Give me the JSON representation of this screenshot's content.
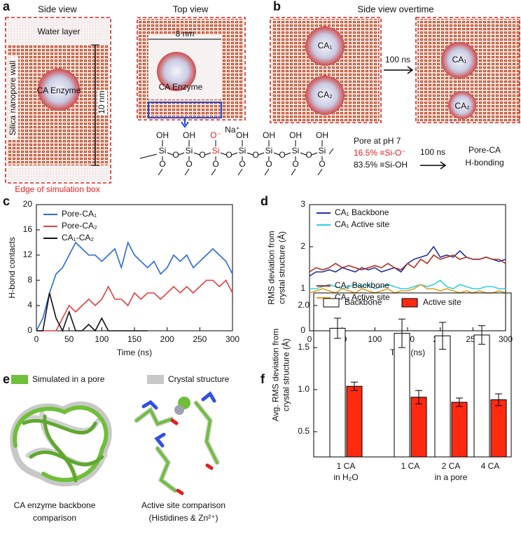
{
  "panels": {
    "a": {
      "label": "a",
      "side_view": "Side view",
      "top_view": "Top view",
      "water_layer": "Water layer",
      "wall": "Silica nanopore wall",
      "enzyme": "CA Enzyme",
      "height": "10 nm",
      "width": "8 nm",
      "edge": "Edge of simulation box"
    },
    "b": {
      "label": "b",
      "title": "Side view overtime",
      "time": "100 ns",
      "ca1": "CA₁",
      "ca2": "CA₂"
    },
    "chem": {
      "si": "Si",
      "o": "O",
      "oh": "OH",
      "o_minus": "O⁻",
      "na": "Na⁺",
      "pore": "Pore at pH 7",
      "deprotonated": "16.5% ≡Si-O⁻",
      "protonated": "83.5% ≡Si-OH",
      "time": "100 ns",
      "result": [
        "Pore-CA",
        "H-bonding"
      ]
    },
    "c": {
      "label": "c"
    },
    "d": {
      "label": "d"
    },
    "e": {
      "label": "e",
      "simulated": "Simulated in a pore",
      "crystal": "Crystal structure",
      "backbone": [
        "CA enzyme backbone",
        "comparison"
      ],
      "active": [
        "Active site comparison",
        "(Histidines & Zn²⁺)"
      ]
    },
    "f": {
      "label": "f"
    }
  },
  "chart_data": [
    {
      "type": "line",
      "xlabel": "Time (ns)",
      "ylabel": [
        "H-bond contacts"
      ],
      "legend": "upper left",
      "x": [
        0,
        10,
        20,
        30,
        40,
        50,
        60,
        70,
        80,
        90,
        100,
        110,
        120,
        130,
        140,
        150,
        160,
        170,
        180,
        190,
        200,
        210,
        220,
        230,
        240,
        250,
        260,
        270,
        280,
        290,
        300
      ],
      "xlim": [
        0,
        300
      ],
      "ylim": [
        0,
        20
      ],
      "xticks": [
        0,
        50,
        100,
        150,
        200,
        250,
        300
      ],
      "yticks": [
        0,
        4,
        8,
        12,
        16,
        20
      ],
      "series": [
        {
          "name": "Pore-CA₁",
          "color": "#2a6ad6",
          "values": [
            0,
            2,
            6,
            9,
            10,
            12,
            14,
            13,
            12,
            12,
            11,
            12,
            13,
            10,
            14,
            12,
            11,
            10,
            11,
            9,
            10,
            12,
            11,
            12,
            10,
            11,
            12,
            13,
            12,
            11,
            9
          ]
        },
        {
          "name": "Pore-CA₂",
          "color": "#e04040",
          "values": [
            0,
            0,
            0,
            0,
            2,
            4,
            3,
            4,
            5,
            4,
            5,
            7,
            5,
            5,
            4,
            6,
            5,
            6,
            6,
            5,
            6,
            7,
            6,
            7,
            6,
            7,
            8,
            8,
            7,
            8,
            6
          ]
        },
        {
          "name": "CA₁-CA₂",
          "color": "#111111",
          "values": [
            0,
            0,
            6,
            2,
            0,
            3,
            0,
            0,
            1,
            0,
            2,
            0,
            0,
            0,
            0,
            0,
            0,
            0,
            null,
            null,
            null,
            null,
            null,
            null,
            null,
            null,
            null,
            null,
            null,
            null,
            null
          ]
        }
      ]
    },
    {
      "type": "line",
      "xlabel": "Time (ns)",
      "ylabel": [
        "RMS deviation from",
        "crystal structure (Å)"
      ],
      "legend": "upper left",
      "x": [
        0,
        10,
        20,
        30,
        40,
        50,
        60,
        70,
        80,
        90,
        100,
        110,
        120,
        130,
        140,
        150,
        160,
        170,
        180,
        190,
        200,
        210,
        220,
        230,
        240,
        250,
        260,
        270,
        280,
        290,
        300
      ],
      "xlim": [
        0,
        300
      ],
      "ylim": [
        0,
        3
      ],
      "xticks": [
        0,
        50,
        100,
        150,
        200,
        250,
        300
      ],
      "yticks": [
        0,
        1,
        2,
        3
      ],
      "series": [
        {
          "name": "CA₁ Backbone",
          "color": "#2030a0",
          "values": [
            1.3,
            1.4,
            1.4,
            1.45,
            1.4,
            1.5,
            1.45,
            1.4,
            1.5,
            1.45,
            1.5,
            1.4,
            1.45,
            1.5,
            1.4,
            1.6,
            1.7,
            1.75,
            1.8,
            2.0,
            1.75,
            1.8,
            1.75,
            1.9,
            1.75,
            1.7,
            1.7,
            1.75,
            1.7,
            1.65,
            1.7
          ]
        },
        {
          "name": "CA₁ Active site",
          "color": "#30d0e0",
          "values": [
            1.0,
            1.0,
            1.05,
            1.1,
            1.05,
            1.0,
            1.05,
            1.1,
            1.05,
            1.1,
            1.0,
            1.05,
            1.1,
            1.05,
            1.0,
            1.0,
            1.05,
            1.1,
            1.05,
            1.1,
            1.2,
            1.05,
            1.0,
            1.1,
            1.05,
            1.0,
            1.0,
            1.05,
            1.05,
            1.0,
            1.0
          ]
        },
        {
          "name": "CA₂ Backbone",
          "color": "#b03020",
          "values": [
            1.4,
            1.5,
            1.45,
            1.5,
            1.6,
            1.5,
            1.55,
            1.5,
            1.45,
            1.5,
            1.55,
            1.5,
            1.6,
            1.5,
            1.45,
            1.6,
            1.5,
            1.7,
            1.6,
            1.8,
            1.7,
            1.75,
            1.8,
            1.7,
            1.75,
            1.7,
            1.7,
            1.75,
            1.7,
            1.7,
            1.6
          ]
        },
        {
          "name": "CA₂ Active site",
          "color": "#e0a020",
          "values": [
            0.9,
            0.95,
            1.0,
            0.95,
            0.9,
            1.0,
            0.95,
            0.9,
            1.0,
            0.95,
            0.9,
            0.95,
            1.0,
            0.9,
            0.95,
            0.95,
            1.0,
            1.1,
            1.0,
            1.0,
            0.95,
            1.0,
            0.95,
            0.9,
            0.95,
            0.9,
            0.95,
            0.9,
            0.9,
            0.95,
            0.9
          ]
        }
      ]
    },
    {
      "type": "bar",
      "ylabel": [
        "Avg. RMS deviation from",
        "crystal structure (Å)"
      ],
      "legend": "top",
      "categories": [
        "1 CA",
        "1 CA",
        "2 CA",
        "4 CA"
      ],
      "group_labels": [
        "in H₂O",
        "in a pore"
      ],
      "ylim": [
        0.2,
        2.15
      ],
      "yticks": [
        0.5,
        {
          "value": 1.0,
          "label": "1.0"
        },
        1.5,
        {
          "value": 2.0,
          "label": "2.0"
        }
      ],
      "series": [
        {
          "name": "Backbone",
          "color": "#ffffff",
          "values": [
            1.73,
            1.67,
            1.64,
            1.65
          ],
          "errors": [
            0.12,
            0.17,
            0.16,
            0.11
          ]
        },
        {
          "name": "Active site",
          "color": "#ff2a10",
          "values": [
            1.04,
            0.91,
            0.85,
            0.88
          ],
          "errors": [
            0.05,
            0.08,
            0.05,
            0.07
          ]
        }
      ]
    }
  ]
}
